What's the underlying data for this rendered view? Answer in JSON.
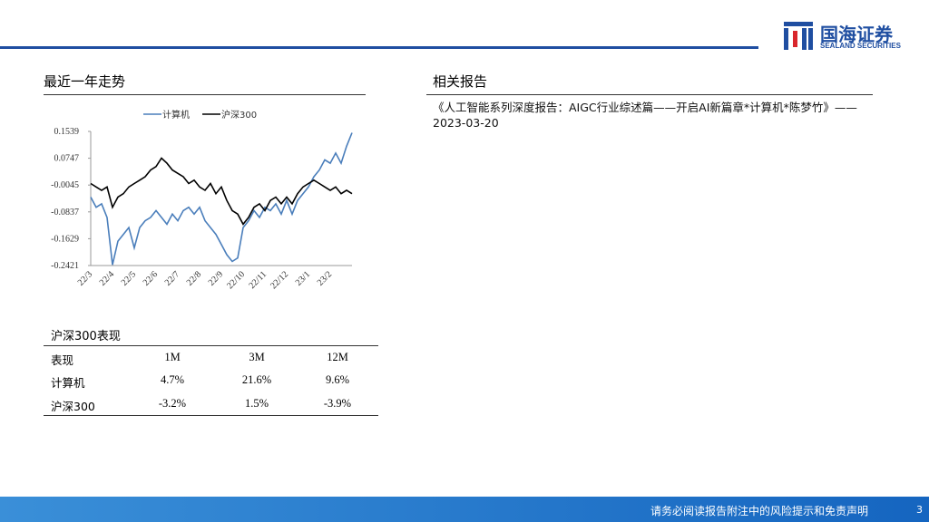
{
  "header": {
    "company": "国海证券",
    "company_en": "SEALAND SECURITIES"
  },
  "left_title": "最近一年走势",
  "right_title": "相关报告",
  "report": "《人工智能系列深度报告：AIGC行业综述篇——开启AI新篇章*计算机*陈梦竹》——2023-03-20",
  "chart_data": {
    "type": "line",
    "categories": [
      "22/3",
      null,
      null,
      null,
      "22/4",
      null,
      null,
      null,
      "22/5",
      null,
      null,
      null,
      "22/6",
      null,
      null,
      null,
      "22/7",
      null,
      null,
      null,
      "22/8",
      null,
      null,
      null,
      "22/9",
      null,
      null,
      null,
      "22/10",
      null,
      null,
      null,
      "22/11",
      null,
      null,
      null,
      "22/12",
      null,
      null,
      null,
      "23/1",
      null,
      null,
      null,
      "23/2",
      null,
      null,
      null,
      null
    ],
    "series": [
      {
        "name": "计算机",
        "color": "#4a7ebb",
        "values": [
          -0.04,
          -0.07,
          -0.06,
          -0.1,
          -0.24,
          -0.17,
          -0.15,
          -0.13,
          -0.19,
          -0.13,
          -0.11,
          -0.1,
          -0.08,
          -0.1,
          -0.12,
          -0.09,
          -0.11,
          -0.08,
          -0.07,
          -0.09,
          -0.07,
          -0.11,
          -0.13,
          -0.15,
          -0.18,
          -0.21,
          -0.23,
          -0.22,
          -0.13,
          -0.11,
          -0.08,
          -0.1,
          -0.07,
          -0.08,
          -0.06,
          -0.09,
          -0.05,
          -0.09,
          -0.05,
          -0.03,
          -0.01,
          0.02,
          0.04,
          0.07,
          0.06,
          0.09,
          0.06,
          0.11,
          0.15
        ]
      },
      {
        "name": "沪深300",
        "color": "#000000",
        "values": [
          0.0,
          -0.01,
          -0.02,
          -0.01,
          -0.07,
          -0.04,
          -0.03,
          -0.01,
          0.0,
          0.01,
          0.02,
          0.04,
          0.05,
          0.075,
          0.06,
          0.04,
          0.03,
          0.02,
          0.0,
          0.01,
          -0.01,
          -0.02,
          0.0,
          -0.03,
          -0.01,
          -0.05,
          -0.08,
          -0.09,
          -0.12,
          -0.1,
          -0.07,
          -0.06,
          -0.08,
          -0.05,
          -0.04,
          -0.06,
          -0.04,
          -0.06,
          -0.03,
          -0.01,
          0.0,
          0.01,
          0.0,
          -0.01,
          -0.02,
          -0.01,
          -0.03,
          -0.02,
          -0.03
        ]
      }
    ],
    "ylim": [
      -0.2421,
      0.1539
    ],
    "yticks": [
      0.1539,
      0.0747,
      -0.0045,
      -0.0837,
      -0.1629,
      -0.2421
    ],
    "legend": "top"
  },
  "table": {
    "title": "沪深300表现",
    "header": [
      "表现",
      "1M",
      "3M",
      "12M"
    ],
    "rows": [
      [
        "计算机",
        "4.7%",
        "21.6%",
        "9.6%"
      ],
      [
        "沪深300",
        "-3.2%",
        "1.5%",
        "-3.9%"
      ]
    ]
  },
  "footer": {
    "disclaimer": "请务必阅读报告附注中的风险提示和免责声明",
    "page": "3"
  }
}
